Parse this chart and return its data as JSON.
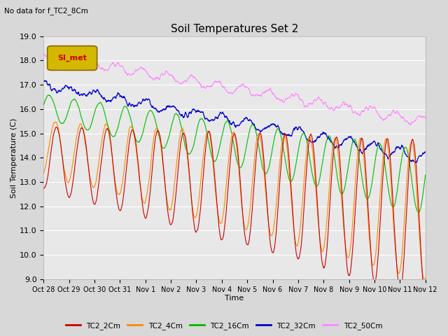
{
  "title": "Soil Temperatures Set 2",
  "subtitle": "No data for f_TC2_8Cm",
  "xlabel": "Time",
  "ylabel": "Soil Temperature (C)",
  "ylim": [
    9.0,
    19.0
  ],
  "yticks": [
    9.0,
    10.0,
    11.0,
    12.0,
    13.0,
    14.0,
    15.0,
    16.0,
    17.0,
    18.0,
    19.0
  ],
  "xtick_labels": [
    "Oct 28",
    "Oct 29",
    "Oct 30",
    "Oct 31",
    "Nov 1",
    "Nov 2",
    "Nov 3",
    "Nov 4",
    "Nov 5",
    "Nov 6",
    "Nov 7",
    "Nov 8",
    "Nov 9",
    "Nov 10",
    "Nov 11",
    "Nov 12"
  ],
  "bg_color": "#d8d8d8",
  "plot_bg_color": "#e8e8e8",
  "grid_color": "#ffffff",
  "legend_box_facecolor": "#d4b800",
  "legend_box_edgecolor": "#8b6500",
  "legend_box_text": "SI_met",
  "legend_box_text_color": "#cc0000",
  "series": [
    {
      "label": "TC2_2Cm",
      "color": "#cc0000"
    },
    {
      "label": "TC2_4Cm",
      "color": "#ff8800"
    },
    {
      "label": "TC2_16Cm",
      "color": "#00bb00"
    },
    {
      "label": "TC2_32Cm",
      "color": "#0000cc"
    },
    {
      "label": "TC2_50Cm",
      "color": "#ff88ff"
    }
  ],
  "figsize": [
    6.4,
    4.8
  ],
  "dpi": 100
}
